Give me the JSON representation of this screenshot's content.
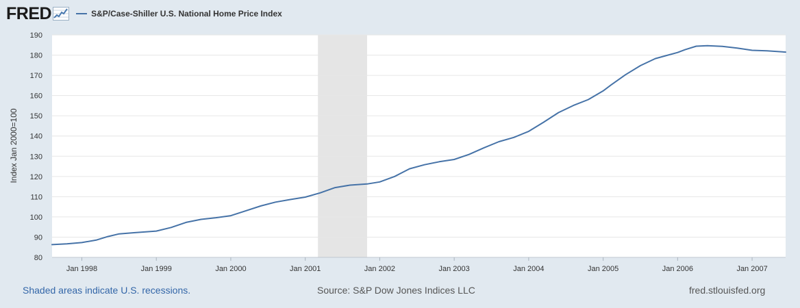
{
  "brand": {
    "logo_text": "FRED",
    "logo_icon": "line-chart-icon"
  },
  "chart_data": {
    "type": "line",
    "title": "S&P/Case-Shiller U.S. National Home Price Index",
    "ylabel": "Index Jan 2000=100",
    "xlabel": "",
    "ylim": [
      80,
      190
    ],
    "yticks": [
      80,
      90,
      100,
      110,
      120,
      130,
      140,
      150,
      160,
      170,
      180,
      190
    ],
    "xticks": [
      {
        "value": 1998.0,
        "label": "Jan 1998"
      },
      {
        "value": 1999.0,
        "label": "Jan 1999"
      },
      {
        "value": 2000.0,
        "label": "Jan 2000"
      },
      {
        "value": 2001.0,
        "label": "Jan 2001"
      },
      {
        "value": 2002.0,
        "label": "Jan 2002"
      },
      {
        "value": 2003.0,
        "label": "Jan 2003"
      },
      {
        "value": 2004.0,
        "label": "Jan 2004"
      },
      {
        "value": 2005.0,
        "label": "Jan 2005"
      },
      {
        "value": 2006.0,
        "label": "Jan 2006"
      },
      {
        "value": 2007.0,
        "label": "Jan 2007"
      }
    ],
    "xlim": [
      1997.6,
      2007.45
    ],
    "grid": true,
    "recessions": [
      {
        "start": 2001.17,
        "end": 2001.83
      }
    ],
    "series": [
      {
        "name": "S&P/Case-Shiller U.S. National Home Price Index",
        "color": "#4572a7",
        "x": [
          1997.6,
          1997.8,
          1998.0,
          1998.2,
          1998.35,
          1998.5,
          1998.7,
          1999.0,
          1999.2,
          1999.4,
          1999.6,
          1999.8,
          2000.0,
          2000.15,
          2000.4,
          2000.6,
          2000.8,
          2001.0,
          2001.2,
          2001.4,
          2001.6,
          2001.83,
          2002.0,
          2002.2,
          2002.4,
          2002.6,
          2002.8,
          2003.0,
          2003.2,
          2003.4,
          2003.6,
          2003.8,
          2004.0,
          2004.2,
          2004.4,
          2004.6,
          2004.8,
          2005.0,
          2005.1,
          2005.3,
          2005.5,
          2005.7,
          2005.85,
          2006.0,
          2006.1,
          2006.25,
          2006.4,
          2006.6,
          2006.8,
          2007.0,
          2007.2,
          2007.45
        ],
        "values": [
          86.3,
          86.7,
          87.3,
          88.6,
          90.3,
          91.6,
          92.2,
          93.0,
          94.8,
          97.3,
          98.8,
          99.6,
          100.6,
          102.4,
          105.4,
          107.3,
          108.6,
          109.8,
          111.9,
          114.5,
          115.7,
          116.3,
          117.3,
          120.0,
          123.8,
          125.8,
          127.3,
          128.4,
          130.9,
          134.2,
          137.2,
          139.3,
          142.3,
          146.8,
          151.6,
          155.1,
          158.0,
          162.3,
          165.1,
          170.3,
          174.8,
          178.3,
          179.8,
          181.3,
          182.7,
          184.4,
          184.7,
          184.3,
          183.5,
          182.4,
          182.1,
          181.5
        ]
      }
    ]
  },
  "footer": {
    "recession_note": "Shaded areas indicate U.S. recessions.",
    "source": "Source: S&P Dow Jones Indices LLC",
    "site": "fred.stlouisfed.org"
  }
}
